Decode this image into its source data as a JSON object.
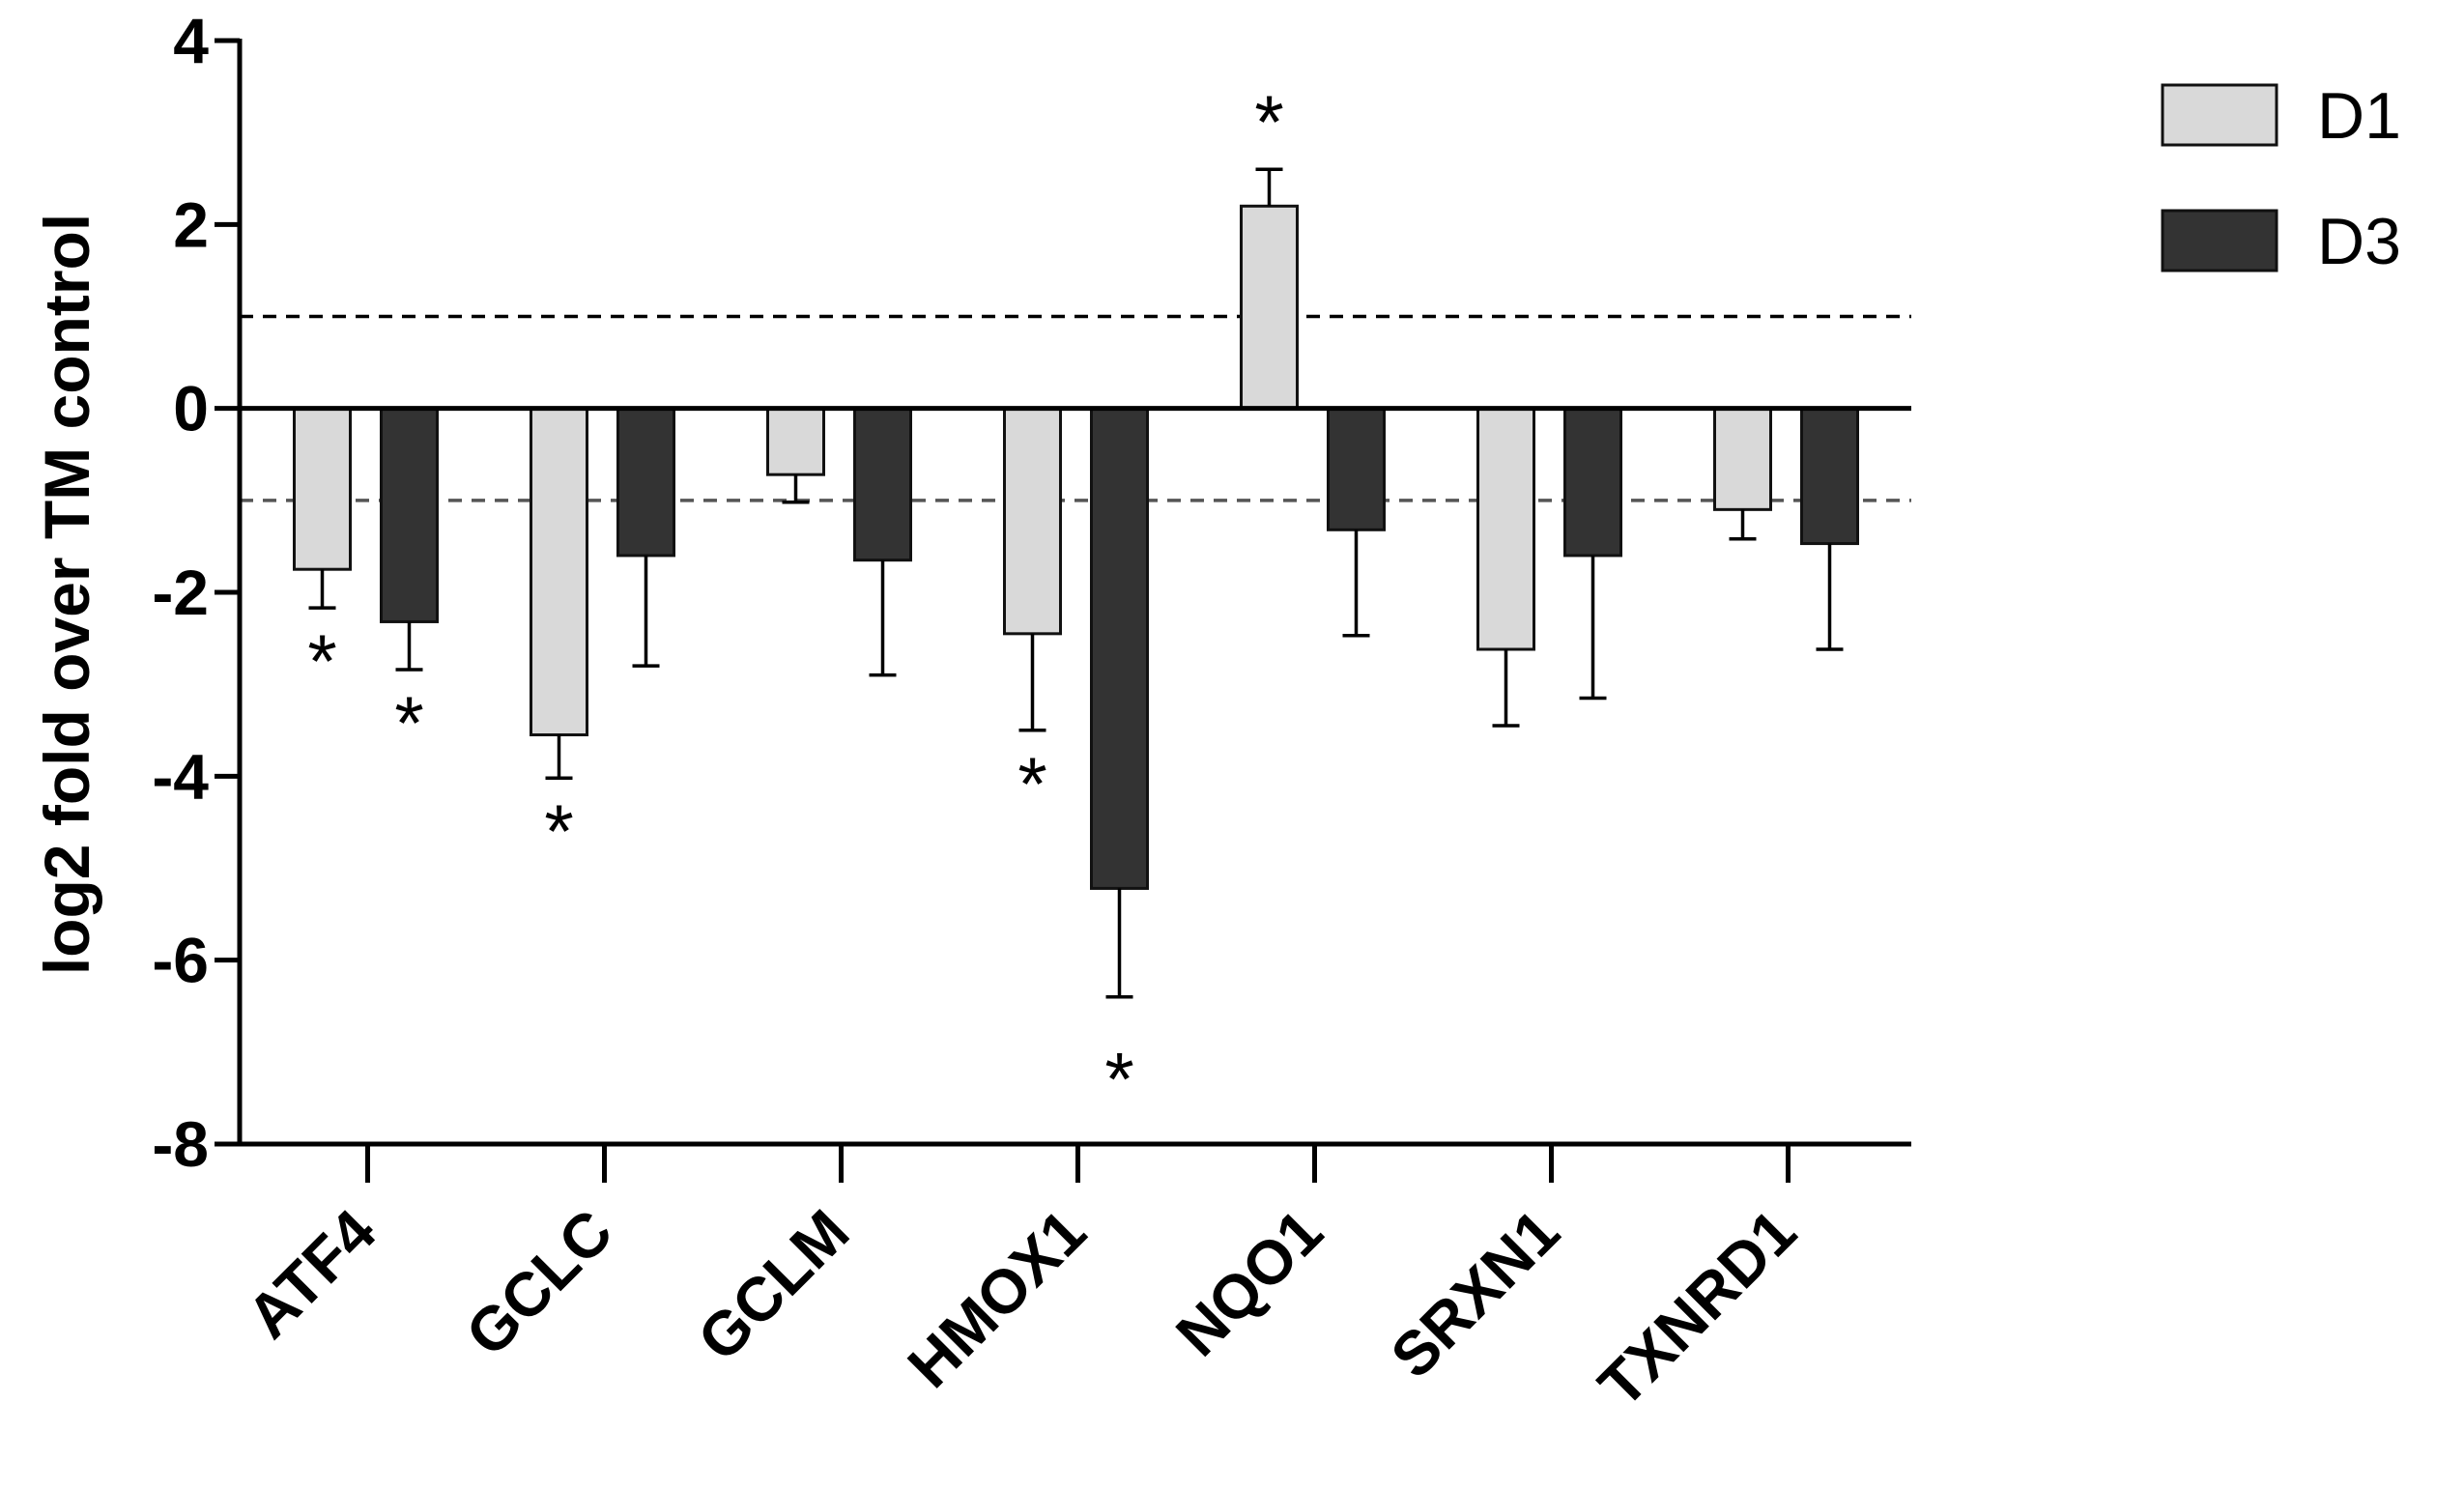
{
  "chart_data": {
    "type": "bar",
    "ylabel": "log2 fold over TM control",
    "xlabel": "",
    "ylim": [
      -8,
      4
    ],
    "yticks": [
      4,
      2,
      0,
      -2,
      -4,
      -6,
      -8
    ],
    "reference_lines": [
      1,
      -1
    ],
    "categories": [
      "ATF4",
      "GCLC",
      "GCLM",
      "HMOX1",
      "NQO1",
      "SRXN1",
      "TXNRD1"
    ],
    "series": [
      {
        "name": "D1",
        "color": "#d9d9d9",
        "values": [
          -1.75,
          -3.55,
          -0.72,
          -2.45,
          2.2,
          -2.62,
          -1.1
        ],
        "errors": [
          0.42,
          0.47,
          0.3,
          1.05,
          0.4,
          0.83,
          0.32
        ],
        "significant": [
          true,
          true,
          false,
          true,
          true,
          false,
          false
        ]
      },
      {
        "name": "D3",
        "color": "#333333",
        "values": [
          -2.32,
          -1.6,
          -1.65,
          -5.22,
          -1.32,
          -1.6,
          -1.47
        ],
        "errors": [
          0.52,
          1.2,
          1.25,
          1.18,
          1.15,
          1.55,
          1.15
        ],
        "significant": [
          true,
          false,
          false,
          true,
          false,
          false,
          false
        ]
      }
    ],
    "significance_marker": "*"
  }
}
